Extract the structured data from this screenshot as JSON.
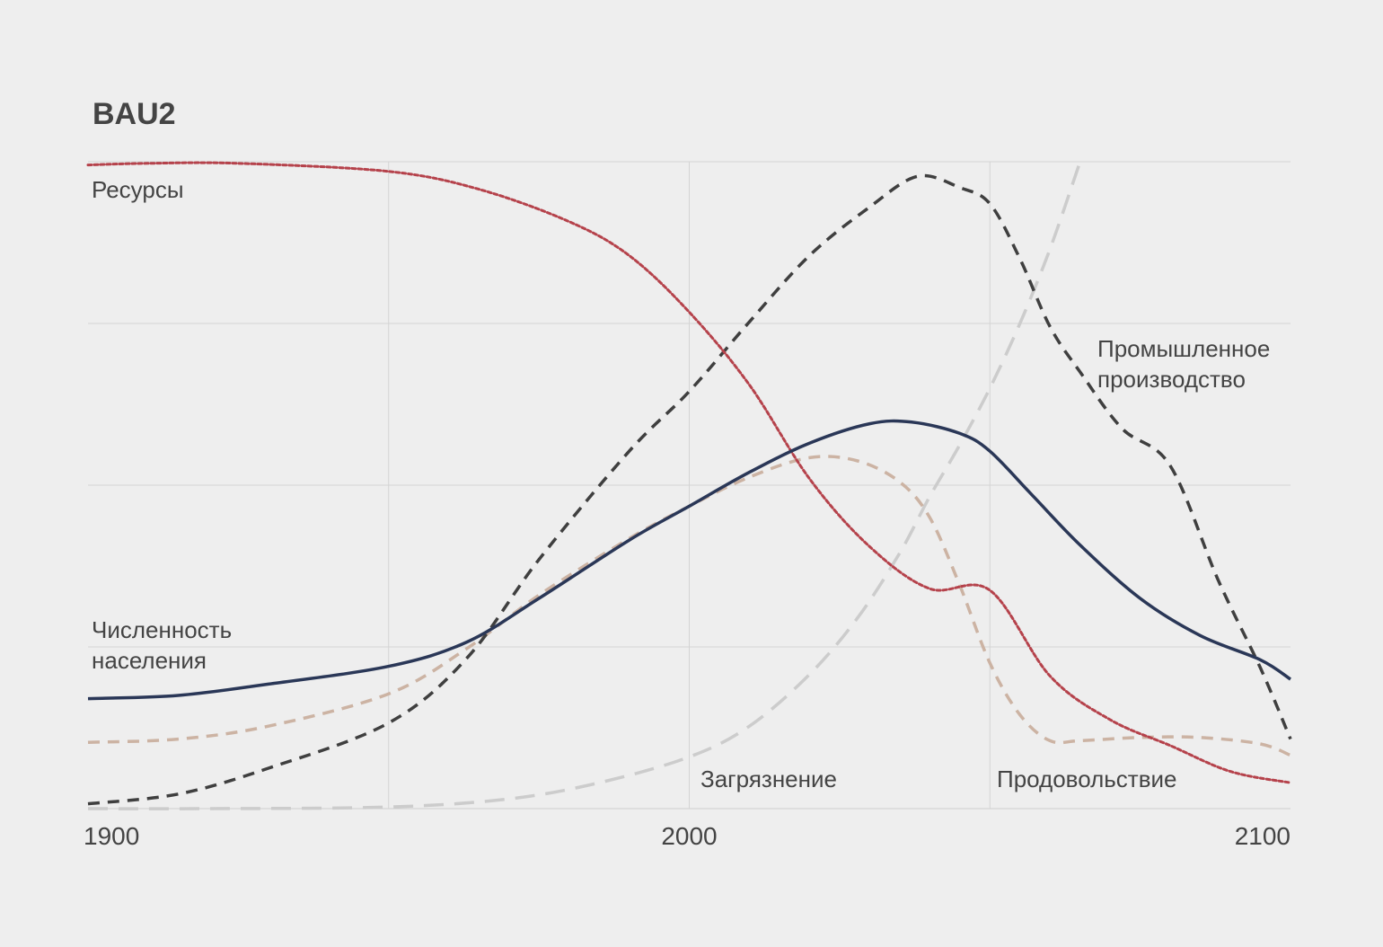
{
  "chart_data": {
    "type": "line",
    "title": "BAU2",
    "xlabel": "",
    "ylabel": "",
    "xlim": [
      1900,
      2100
    ],
    "ylim": [
      0,
      4
    ],
    "x_ticks": [
      "1900",
      "2000",
      "2100"
    ],
    "x_tick_values": [
      1900,
      2000,
      2100
    ],
    "grid": true,
    "series": [
      {
        "name": "Ресурсы",
        "color": "#b5424b",
        "style": "dotted",
        "label_lines": [
          "Ресурсы"
        ],
        "points": [
          [
            1900,
            3.98
          ],
          [
            1910,
            3.99
          ],
          [
            1925,
            3.99
          ],
          [
            1950,
            3.94
          ],
          [
            1965,
            3.83
          ],
          [
            1980,
            3.63
          ],
          [
            1990,
            3.42
          ],
          [
            2000,
            3.07
          ],
          [
            2010,
            2.62
          ],
          [
            2020,
            2.04
          ],
          [
            2030,
            1.62
          ],
          [
            2040,
            1.36
          ],
          [
            2050,
            1.35
          ],
          [
            2060,
            0.82
          ],
          [
            2070,
            0.55
          ],
          [
            2080,
            0.39
          ],
          [
            2090,
            0.23
          ],
          [
            2100,
            0.16
          ]
        ]
      },
      {
        "name": "Численность населения",
        "color": "#2a3757",
        "style": "solid",
        "label_lines": [
          "Численность",
          "населения"
        ],
        "points": [
          [
            1900,
            0.68
          ],
          [
            1915,
            0.7
          ],
          [
            1930,
            0.77
          ],
          [
            1950,
            0.88
          ],
          [
            1963,
            1.03
          ],
          [
            1975,
            1.3
          ],
          [
            1990,
            1.66
          ],
          [
            2000,
            1.87
          ],
          [
            2010,
            2.08
          ],
          [
            2020,
            2.26
          ],
          [
            2030,
            2.38
          ],
          [
            2037,
            2.39
          ],
          [
            2045,
            2.32
          ],
          [
            2050,
            2.21
          ],
          [
            2057,
            1.94
          ],
          [
            2065,
            1.63
          ],
          [
            2075,
            1.3
          ],
          [
            2085,
            1.07
          ],
          [
            2095,
            0.92
          ],
          [
            2100,
            0.8
          ]
        ]
      },
      {
        "name": "Промышленное производство",
        "color": "#3f3f3f",
        "style": "dashed",
        "label_lines": [
          "Промышленное",
          "производство"
        ],
        "points": [
          [
            1900,
            0.03
          ],
          [
            1915,
            0.09
          ],
          [
            1930,
            0.25
          ],
          [
            1950,
            0.53
          ],
          [
            1963,
            0.93
          ],
          [
            1975,
            1.54
          ],
          [
            1990,
            2.21
          ],
          [
            2000,
            2.58
          ],
          [
            2010,
            3.01
          ],
          [
            2020,
            3.42
          ],
          [
            2030,
            3.72
          ],
          [
            2038,
            3.91
          ],
          [
            2045,
            3.84
          ],
          [
            2050,
            3.74
          ],
          [
            2055,
            3.4
          ],
          [
            2060,
            2.98
          ],
          [
            2065,
            2.7
          ],
          [
            2072,
            2.35
          ],
          [
            2080,
            2.12
          ],
          [
            2088,
            1.41
          ],
          [
            2095,
            0.87
          ],
          [
            2100,
            0.43
          ]
        ]
      },
      {
        "name": "Продовольствие",
        "color": "#ccb3a3",
        "style": "dashed",
        "label_lines": [
          "Продовольствие"
        ],
        "points": [
          [
            1900,
            0.41
          ],
          [
            1915,
            0.43
          ],
          [
            1930,
            0.51
          ],
          [
            1950,
            0.71
          ],
          [
            1963,
            0.99
          ],
          [
            1975,
            1.32
          ],
          [
            1990,
            1.67
          ],
          [
            2000,
            1.87
          ],
          [
            2010,
            2.05
          ],
          [
            2020,
            2.17
          ],
          [
            2028,
            2.15
          ],
          [
            2035,
            2.02
          ],
          [
            2040,
            1.8
          ],
          [
            2045,
            1.38
          ],
          [
            2050,
            0.9
          ],
          [
            2055,
            0.58
          ],
          [
            2060,
            0.42
          ],
          [
            2065,
            0.42
          ],
          [
            2075,
            0.44
          ],
          [
            2085,
            0.44
          ],
          [
            2095,
            0.4
          ],
          [
            2100,
            0.33
          ]
        ]
      },
      {
        "name": "Загрязнение",
        "color": "#cccccc",
        "style": "dashed",
        "label_lines": [
          "Загрязнение"
        ],
        "points": [
          [
            1900,
            0.0
          ],
          [
            1920,
            0.0
          ],
          [
            1950,
            0.01
          ],
          [
            1970,
            0.06
          ],
          [
            1985,
            0.16
          ],
          [
            2000,
            0.32
          ],
          [
            2010,
            0.51
          ],
          [
            2020,
            0.83
          ],
          [
            2028,
            1.18
          ],
          [
            2035,
            1.58
          ],
          [
            2040,
            1.93
          ],
          [
            2045,
            2.25
          ],
          [
            2050,
            2.6
          ],
          [
            2055,
            3.0
          ],
          [
            2060,
            3.46
          ],
          [
            2065,
            4.0
          ]
        ]
      }
    ]
  }
}
